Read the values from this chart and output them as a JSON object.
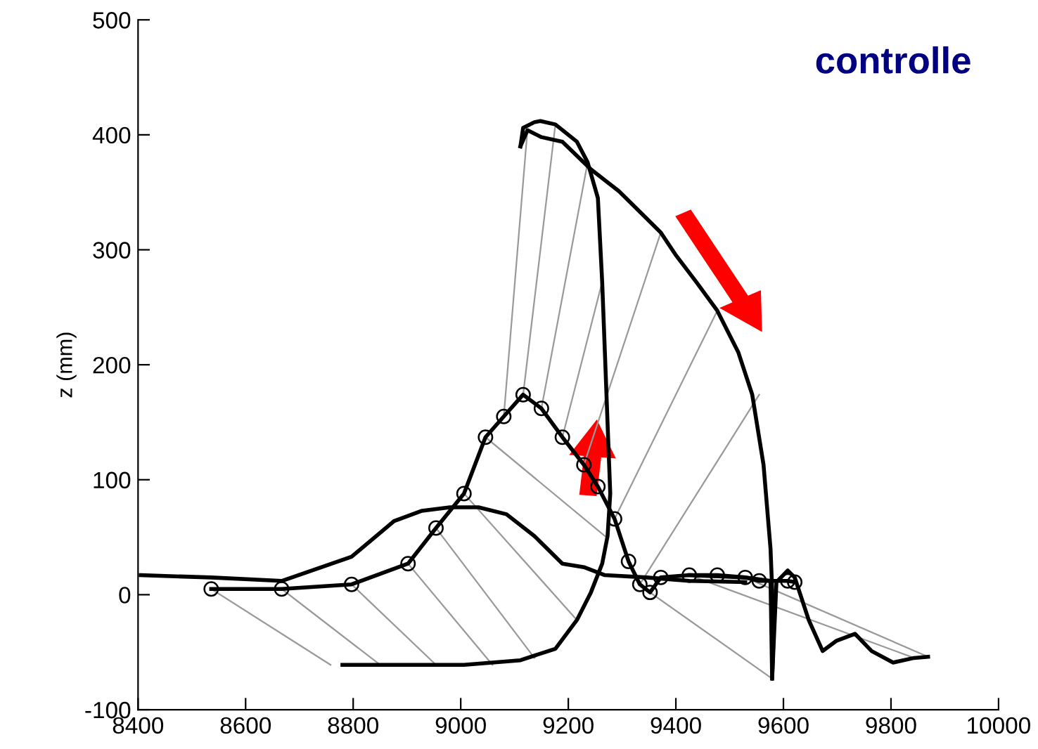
{
  "chart_data": {
    "type": "line",
    "title": "controlle",
    "ylabel": "z (mm)",
    "xlim": [
      8400,
      10000
    ],
    "xticks": [
      8400,
      8600,
      8800,
      9000,
      9200,
      9400,
      9600,
      9800,
      10000
    ],
    "ylim": [
      -100,
      500
    ],
    "yticks": [
      -100,
      0,
      100,
      200,
      300,
      400,
      500
    ],
    "grid": false,
    "legend": false,
    "series": [
      {
        "color": "#999999",
        "x": [
          8536,
          8758,
          null,
          8667,
          8850,
          null,
          8797,
          8954,
          null,
          8902,
          9059,
          null,
          8954,
          9137,
          null,
          9006,
          9216,
          null,
          9046,
          9268,
          null,
          9080,
          9124,
          null,
          9116,
          9176,
          null,
          9150,
          9236,
          null,
          9189,
          9263,
          null,
          9229,
          9372,
          null,
          9286,
          9477,
          null,
          9333,
          9555,
          null,
          9352,
          9579,
          null,
          9425,
          9843,
          null,
          9529,
          9869
        ],
        "values": [
          5,
          -61,
          null,
          5,
          -61,
          null,
          9,
          -61,
          null,
          27,
          -61,
          null,
          58,
          -55,
          null,
          88,
          -22,
          null,
          137,
          51,
          null,
          155,
          404,
          null,
          174,
          409,
          null,
          162,
          376,
          null,
          137,
          272,
          null,
          113,
          315,
          null,
          66,
          247,
          null,
          9,
          174,
          null,
          2,
          -73,
          null,
          17,
          -55,
          null,
          15,
          -54
        ]
      },
      {
        "color": "#000000",
        "x": [
          8405,
          8536,
          8667,
          8797,
          8876,
          8928,
          8980,
          9033,
          9085,
          9137,
          9189,
          9229,
          9268,
          9346,
          9425,
          9529
        ],
        "values": [
          17,
          15,
          12,
          33,
          64,
          73,
          76,
          76,
          70,
          51,
          27,
          24,
          17,
          15,
          12,
          11
        ]
      },
      {
        "color": "#000000",
        "x": [
          9111,
          9116,
          9137,
          9148,
          9176,
          9216,
          9236,
          9255,
          9263,
          9268,
          9273,
          9278,
          9273,
          9263,
          9242,
          9216,
          9176,
          9111,
          9006,
          8876,
          8780
        ],
        "values": [
          390,
          406,
          411,
          412,
          409,
          394,
          376,
          345,
          272,
          211,
          149,
          88,
          51,
          27,
          2,
          -22,
          -47,
          -57,
          -61,
          -61,
          -61
        ]
      },
      {
        "color": "#000000",
        "x": [
          9111,
          9124,
          9150,
          9189,
          9242,
          9294,
          9346,
          9372,
          9399,
          9438,
          9477,
          9516,
          9542,
          9563,
          9576,
          9582,
          9579
        ],
        "values": [
          390,
          404,
          398,
          394,
          370,
          351,
          327,
          315,
          296,
          272,
          247,
          211,
          174,
          113,
          40,
          -30,
          -73
        ]
      },
      {
        "color": "#000000",
        "x": [
          9425,
          9529,
          9576,
          9579,
          9587,
          9608,
          9621,
          9647,
          9673,
          9699,
          9733,
          9764,
          9804,
          9843,
          9869
        ],
        "values": [
          17,
          15,
          12,
          -73,
          11,
          21,
          15,
          -22,
          -49,
          -40,
          -34,
          -49,
          -59,
          -55,
          -54
        ]
      },
      {
        "color": "#000000",
        "marker": "circle",
        "x": [
          8536,
          8667,
          8797,
          8902,
          8954,
          9006,
          9046,
          9080,
          9116,
          9150,
          9189,
          9229,
          9255,
          9286,
          9312,
          9333,
          9352,
          9372,
          9425,
          9477,
          9529,
          9555,
          9608,
          9621
        ],
        "values": [
          5,
          5,
          9,
          27,
          58,
          88,
          137,
          155,
          174,
          162,
          137,
          113,
          94,
          66,
          29,
          9,
          2,
          15,
          17,
          17,
          15,
          12,
          12,
          11
        ]
      }
    ]
  }
}
